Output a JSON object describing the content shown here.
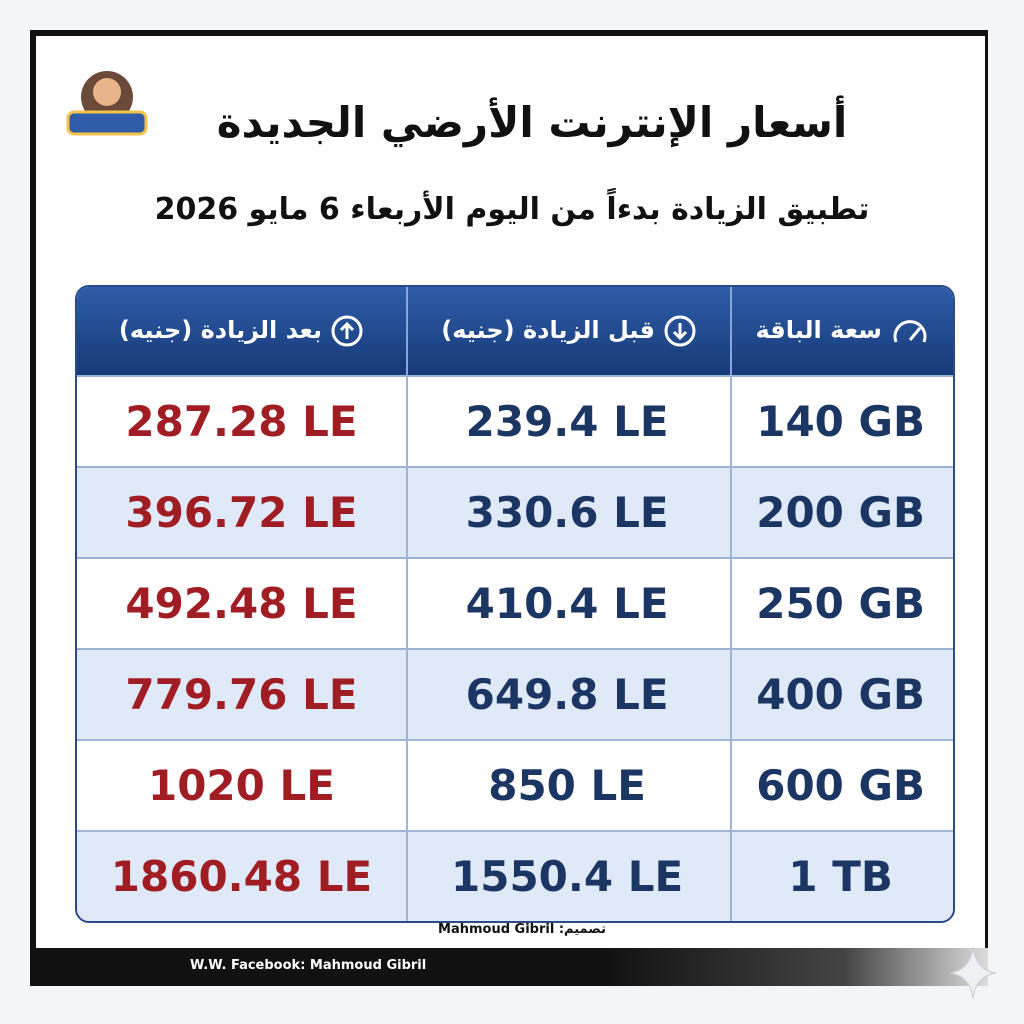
{
  "header": {
    "title": "أسعار الإنترنت الأرضي الجديدة",
    "subtitle": "تطبيق الزيادة بدءاً من اليوم الأربعاء 6 مايو 2026"
  },
  "table": {
    "columns": [
      "سعة الباقة",
      "قبل الزيادة (جنيه)",
      "بعد الزيادة (جنيه)"
    ],
    "rows": [
      [
        "140 GB",
        "239.4 LE",
        "287.28 LE"
      ],
      [
        "200 GB",
        "330.6 LE",
        "396.72 LE"
      ],
      [
        "250 GB",
        "410.4 LE",
        "492.48 LE"
      ],
      [
        "400 GB",
        "649.8 LE",
        "779.76 LE"
      ],
      [
        "600 GB",
        "850 LE",
        "1020 LE"
      ],
      [
        "1 TB",
        "1550.4 LE",
        "1860.48 LE"
      ]
    ]
  },
  "footer": {
    "credit_label": "تصميم:",
    "credit_name": "Mahmoud Gibril",
    "facebook": "W.W. Facebook: Mahmoud Gibril"
  }
}
